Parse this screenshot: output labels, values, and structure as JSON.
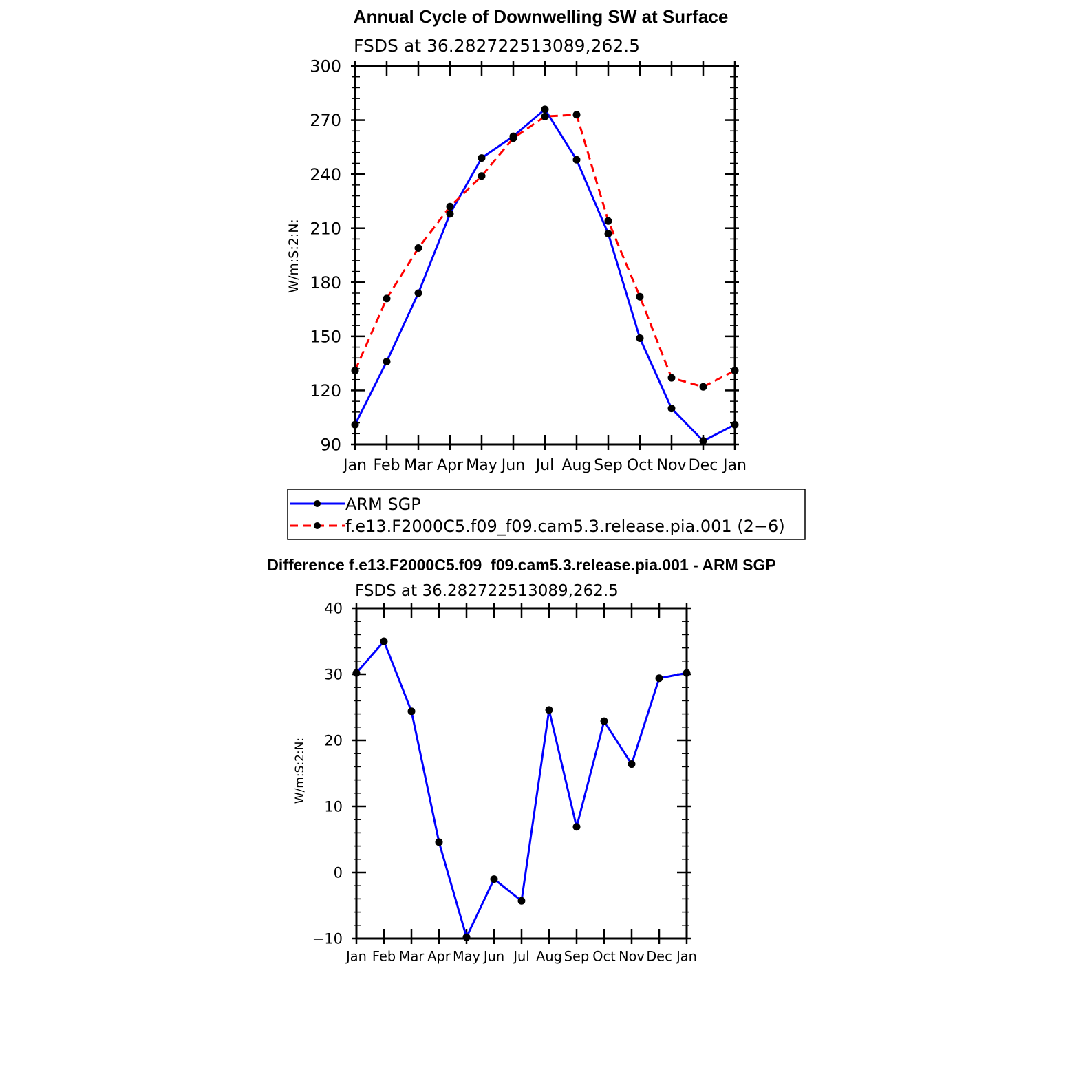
{
  "chart_data": [
    {
      "type": "line",
      "title": "Annual Cycle of Downwelling SW at Surface",
      "subtitle": "FSDS at 36.282722513089,262.5",
      "ylabel": "W/m:S:2:N:",
      "ylim": [
        90,
        300
      ],
      "yticks": [
        90,
        120,
        150,
        180,
        210,
        240,
        270,
        300
      ],
      "categories": [
        "Jan",
        "Feb",
        "Mar",
        "Apr",
        "May",
        "Jun",
        "Jul",
        "Aug",
        "Sep",
        "Oct",
        "Nov",
        "Dec",
        "Jan"
      ],
      "series": [
        {
          "name": "ARM SGP",
          "color": "#0000ff",
          "dash": "solid",
          "values": [
            101,
            136,
            174,
            218,
            249,
            261,
            276,
            248,
            207,
            149,
            110,
            92,
            101
          ]
        },
        {
          "name": "f.e13.F2000C5.f09_f09.cam5.3.release.pia.001 (2−6)",
          "color": "#ff0000",
          "dash": "dashed",
          "values": [
            131,
            171,
            199,
            222,
            239,
            260,
            272,
            273,
            214,
            172,
            127,
            122,
            131
          ]
        }
      ],
      "legend_position": "bottom"
    },
    {
      "type": "line",
      "title": "Difference f.e13.F2000C5.f09_f09.cam5.3.release.pia.001 - ARM SGP",
      "subtitle": "FSDS at 36.282722513089,262.5",
      "ylabel": "W/m:S:2:N:",
      "ylim": [
        -10,
        40
      ],
      "yticks": [
        -10,
        0,
        10,
        20,
        30,
        40
      ],
      "ytick_labels": [
        "−10",
        "0",
        "10",
        "20",
        "30",
        "40"
      ],
      "categories": [
        "Jan",
        "Feb",
        "Mar",
        "Apr",
        "May",
        "Jun",
        "Jul",
        "Aug",
        "Sep",
        "Oct",
        "Nov",
        "Dec",
        "Jan"
      ],
      "series": [
        {
          "color": "#0000ff",
          "dash": "solid",
          "values": [
            30.2,
            35,
            24.4,
            4.6,
            -9.8,
            -1,
            -4.3,
            24.6,
            6.9,
            22.9,
            16.4,
            29.4,
            30.2
          ]
        }
      ]
    }
  ]
}
